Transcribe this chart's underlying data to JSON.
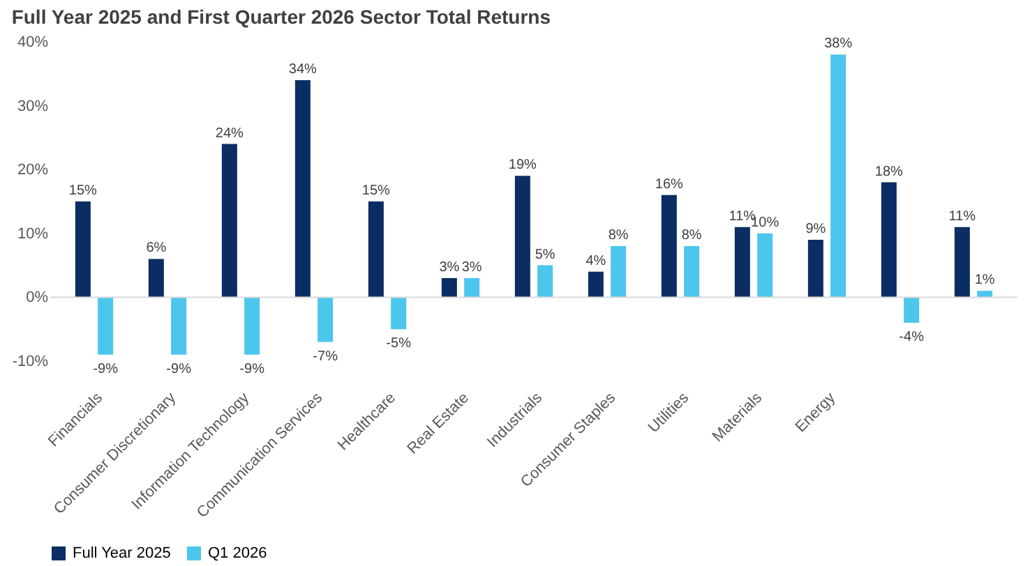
{
  "chart_data": {
    "type": "bar",
    "title": "Full Year 2025 and First Quarter 2026 Sector Total Returns",
    "categories": [
      "Financials",
      "Consumer Discretionary",
      "Information Technology",
      "Communication Services",
      "Healthcare",
      "Real Estate",
      "Industrials",
      "Consumer Staples",
      "Utilities",
      "Materials",
      "Energy",
      null,
      null
    ],
    "series": [
      {
        "name": "Full Year 2025",
        "color": "#0b2d63",
        "values": [
          15,
          6,
          24,
          34,
          15,
          3,
          19,
          4,
          16,
          11,
          9,
          18,
          11
        ],
        "value_labels": [
          "15%",
          "6%",
          "24%",
          "34%",
          "15%",
          "3%",
          "19%",
          "4%",
          "16%",
          "11%",
          "9%",
          "18%",
          "11%"
        ]
      },
      {
        "name": "Q1 2026",
        "color": "#4cc6ec",
        "values": [
          -9,
          -9,
          -9,
          -7,
          -5,
          3,
          5,
          8,
          8,
          10,
          38,
          -4,
          1
        ],
        "value_labels": [
          "-9%",
          "-9%",
          "-9%",
          "-7%",
          "-5%",
          "3%",
          "5%",
          "8%",
          "8%",
          "10%",
          "38%",
          "-4%",
          "1%"
        ]
      }
    ],
    "ylim": [
      -10,
      40
    ],
    "yticks": [
      {
        "value": -10,
        "label": "-10%"
      },
      {
        "value": 0,
        "label": "0%"
      },
      {
        "value": 10,
        "label": "10%"
      },
      {
        "value": 20,
        "label": "20%"
      },
      {
        "value": 30,
        "label": "30%"
      },
      {
        "value": 40,
        "label": "40%"
      }
    ],
    "ref_lines": [
      {
        "axis": "y",
        "value": 0,
        "color": "#d9d9d9"
      }
    ],
    "grid": false,
    "legend": "bottom"
  }
}
